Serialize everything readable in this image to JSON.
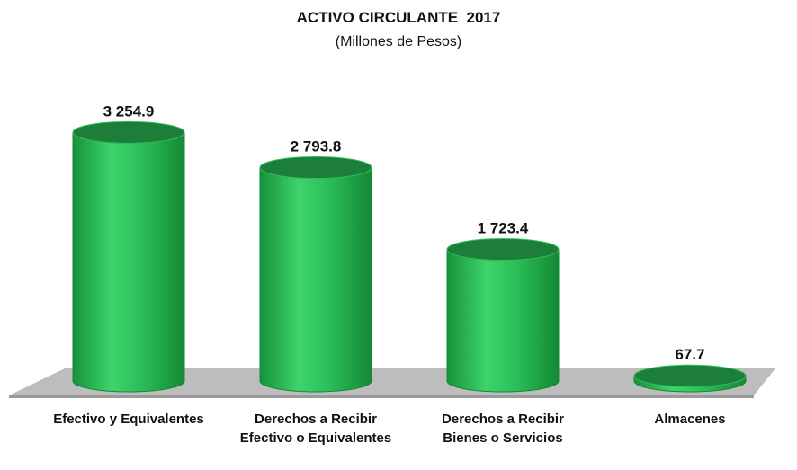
{
  "chart_data": {
    "type": "bar3d",
    "title": "ACTIVO CIRCULANTE  2017",
    "subtitle": "(Millones de Pesos)",
    "categories": [
      "Efectivo y Equivalentes",
      "Derechos a Recibir Efectivo o Equivalentes",
      "Derechos a Recibir Bienes o Servicios",
      "Almacenes"
    ],
    "values": [
      3254.9,
      2793.8,
      1723.4,
      67.7
    ],
    "value_labels": [
      "3 254.9",
      "2 793.8",
      "1 723.4",
      "67.7"
    ],
    "color": "#2fbf5a"
  }
}
